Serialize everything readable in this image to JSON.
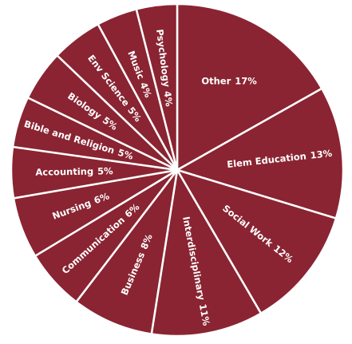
{
  "chart_data": {
    "type": "pie",
    "categories": [
      "Other",
      "Elem Education",
      "Social Work",
      "Interdisciplinary",
      "Business",
      "Communication",
      "Nursing",
      "Accounting",
      "Bible and Religion",
      "Biology",
      "Env Science",
      "Music",
      "Psychology"
    ],
    "values": [
      17,
      13,
      12,
      11,
      8,
      6,
      6,
      5,
      5,
      5,
      5,
      4,
      4
    ],
    "value_labels": [
      "17%",
      "13%",
      "12%",
      "11%",
      "8%",
      "6%",
      "6%",
      "5%",
      "5%",
      "5%",
      "5%",
      "4%",
      "4%"
    ],
    "color": "#8a2432"
  }
}
